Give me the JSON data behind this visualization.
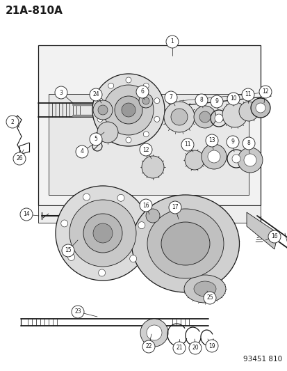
{
  "title": "21A-810A",
  "footer": "93451 810",
  "bg_color": "#ffffff",
  "line_color": "#1a1a1a",
  "title_fontsize": 11,
  "footer_fontsize": 7.5
}
